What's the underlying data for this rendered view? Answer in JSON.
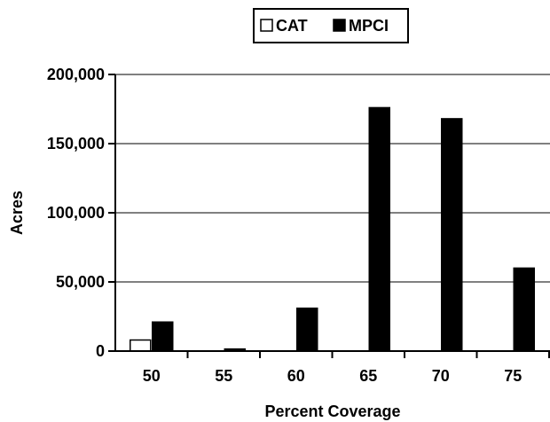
{
  "chart_data": {
    "type": "bar",
    "title": "",
    "xlabel": "Percent Coverage",
    "ylabel": "Acres",
    "categories": [
      "50",
      "55",
      "60",
      "65",
      "70",
      "75"
    ],
    "series": [
      {
        "name": "CAT",
        "color": "#ffffff",
        "values": [
          8000,
          0,
          0,
          0,
          0,
          0
        ]
      },
      {
        "name": "MPCI",
        "color": "#000000",
        "values": [
          21000,
          1500,
          31000,
          176000,
          168000,
          60000
        ]
      }
    ],
    "ylim": [
      0,
      200000
    ],
    "yticks": [
      0,
      50000,
      100000,
      150000,
      200000
    ],
    "ytick_labels": [
      "0",
      "50,000",
      "100,000",
      "150,000",
      "200,000"
    ],
    "grid": true,
    "legend_position": "top-center"
  }
}
